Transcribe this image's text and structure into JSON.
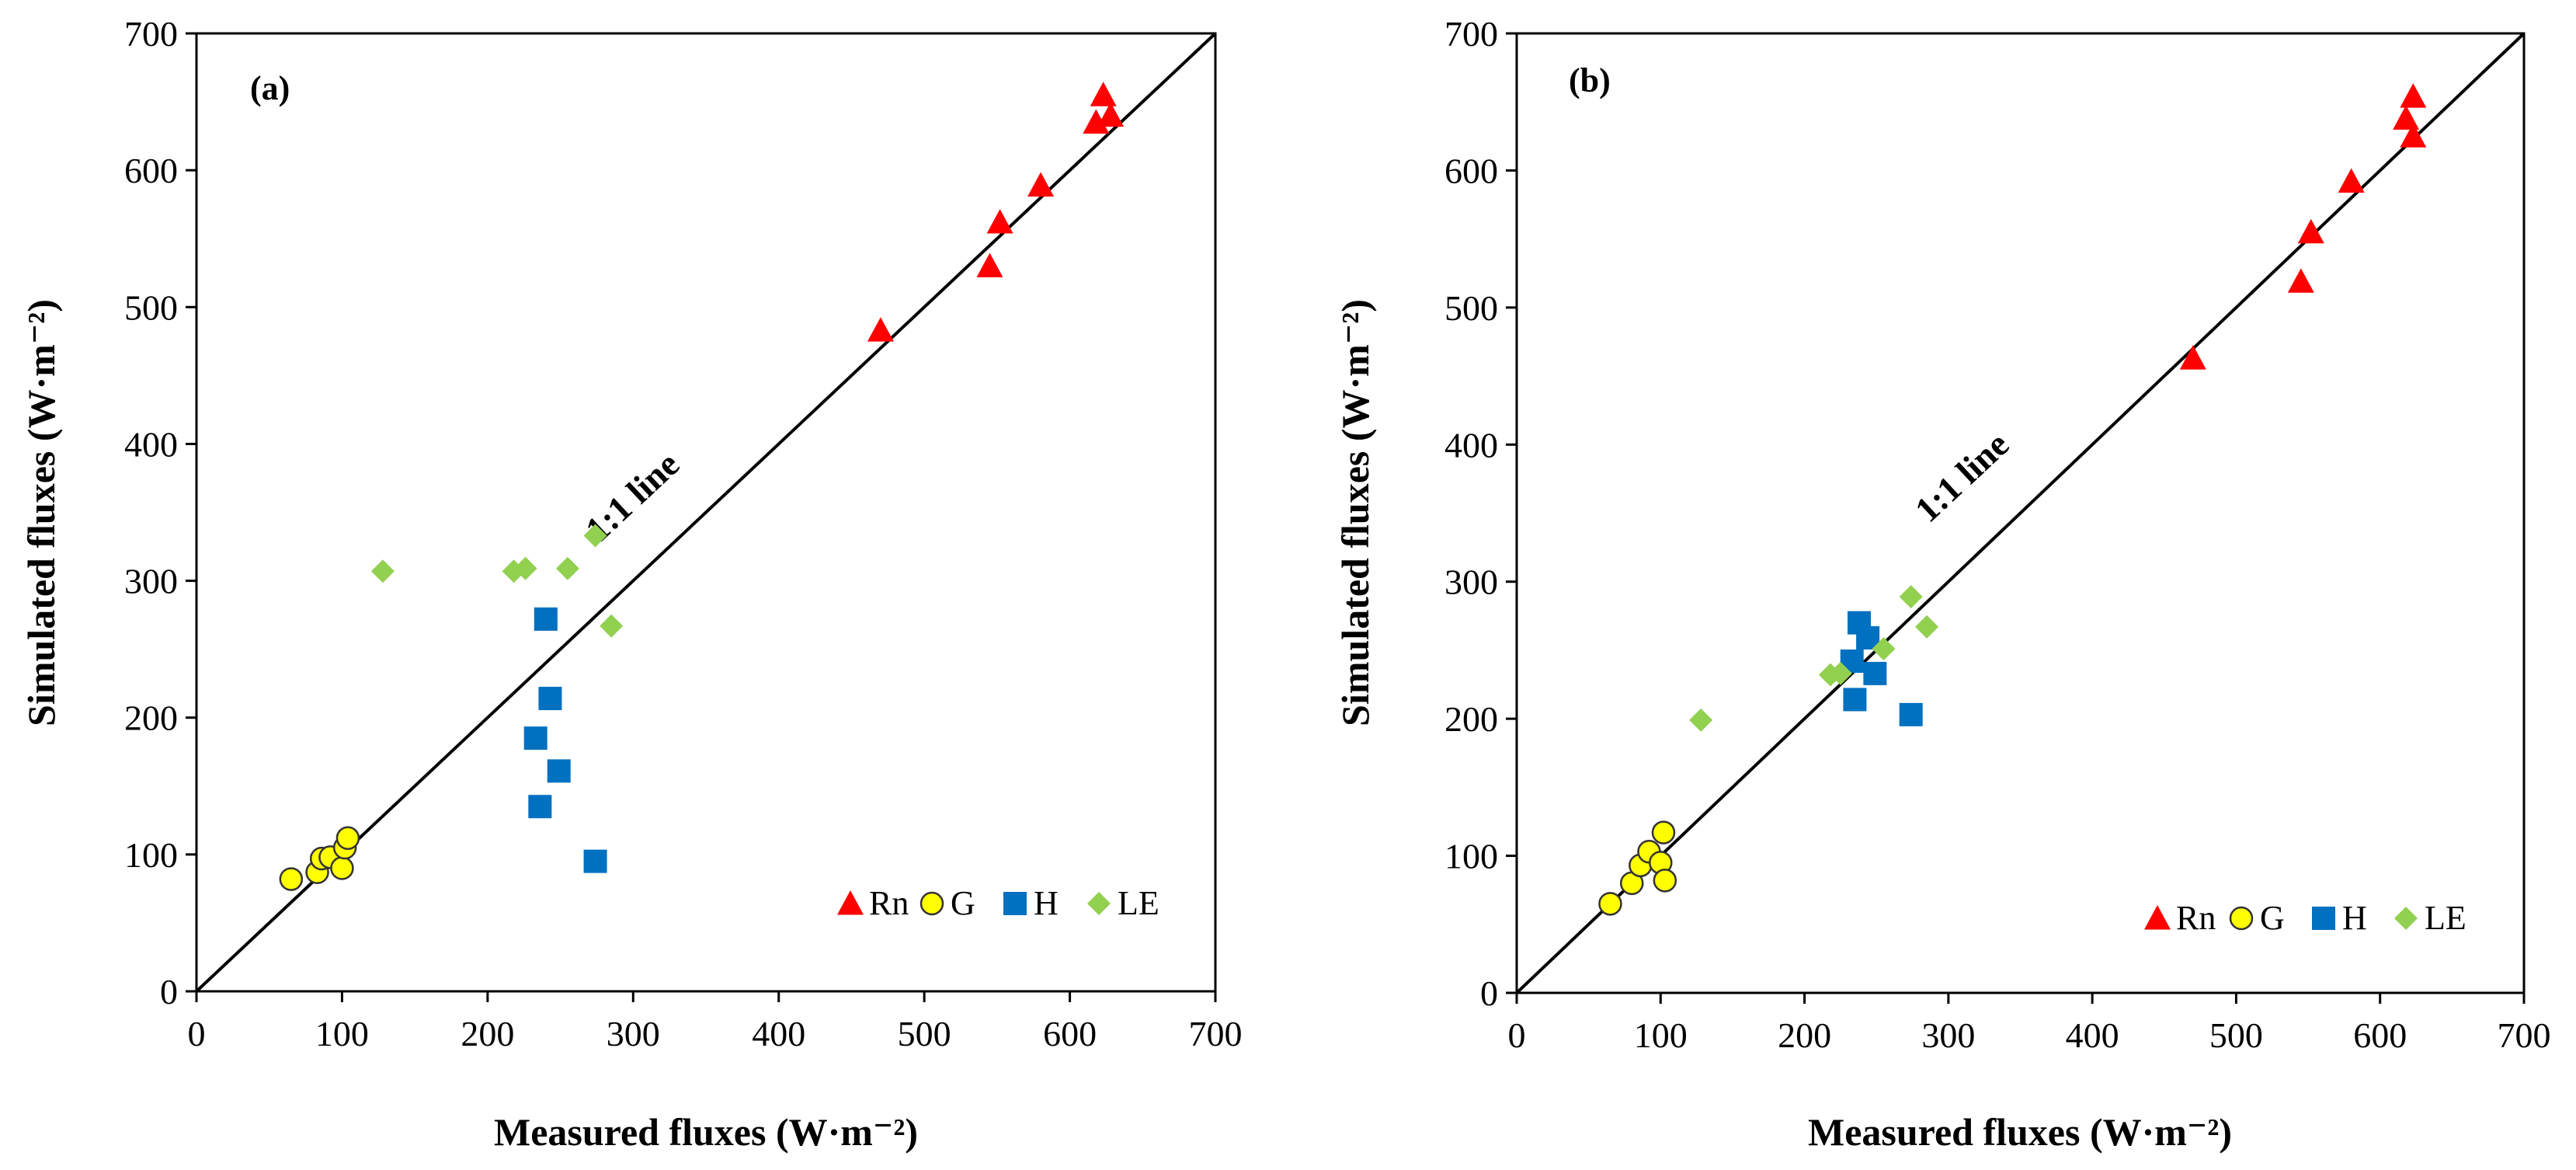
{
  "chart_data": [
    {
      "type": "scatter",
      "panel_label": "(a)",
      "xlabel": "Measured fluxes (W·m⁻²)",
      "ylabel": "Simulated fluxes (W·m⁻²)",
      "xlim": [
        0,
        700
      ],
      "ylim": [
        0,
        700
      ],
      "xticks": [
        "0",
        "100",
        "200",
        "300",
        "400",
        "500",
        "600",
        "700"
      ],
      "yticks": [
        "0",
        "100",
        "200",
        "300",
        "400",
        "500",
        "600",
        "700"
      ],
      "reference_line": {
        "label": "1:1 line",
        "from": [
          0,
          0
        ],
        "to": [
          700,
          700
        ]
      },
      "legend_position": "bottom-right",
      "series": [
        {
          "name": "Rn",
          "marker": "triangle",
          "color": "#ff0000",
          "points": [
            [
              470,
              483
            ],
            [
              545,
              530
            ],
            [
              552,
              562
            ],
            [
              580,
              589
            ],
            [
              618,
              635
            ],
            [
              623,
              655
            ],
            [
              628,
              640
            ]
          ]
        },
        {
          "name": "G",
          "marker": "circle",
          "color": "#ffff00",
          "points": [
            [
              65,
              82
            ],
            [
              83,
              87
            ],
            [
              86,
              97
            ],
            [
              92,
              98
            ],
            [
              100,
              90
            ],
            [
              102,
              105
            ],
            [
              104,
              112
            ]
          ]
        },
        {
          "name": "H",
          "marker": "square",
          "color": "#0070c0",
          "points": [
            [
              236,
              135
            ],
            [
              233,
              185
            ],
            [
              240,
              272
            ],
            [
              243,
              214
            ],
            [
              249,
              161
            ],
            [
              274,
              95
            ]
          ]
        },
        {
          "name": "LE",
          "marker": "diamond",
          "color": "#92d050",
          "points": [
            [
              128,
              307
            ],
            [
              218,
              307
            ],
            [
              226,
              309
            ],
            [
              255,
              309
            ],
            [
              274,
              333
            ],
            [
              285,
              267
            ]
          ]
        }
      ]
    },
    {
      "type": "scatter",
      "panel_label": "(b)",
      "xlabel": "Measured fluxes (W·m⁻²)",
      "ylabel": "Simulated fluxes (W·m⁻²)",
      "xlim": [
        0,
        700
      ],
      "ylim": [
        0,
        700
      ],
      "xticks": [
        "0",
        "100",
        "200",
        "300",
        "400",
        "500",
        "600",
        "700"
      ],
      "yticks": [
        "0",
        "100",
        "200",
        "300",
        "400",
        "500",
        "600",
        "700"
      ],
      "reference_line": {
        "label": "1:1 line",
        "from": [
          0,
          0
        ],
        "to": [
          700,
          700
        ]
      },
      "legend_position": "bottom-right",
      "series": [
        {
          "name": "Rn",
          "marker": "triangle",
          "color": "#ff0000",
          "points": [
            [
              470,
              463
            ],
            [
              545,
              519
            ],
            [
              552,
              555
            ],
            [
              580,
              592
            ],
            [
              618,
              638
            ],
            [
              623,
              654
            ],
            [
              623,
              625
            ]
          ]
        },
        {
          "name": "G",
          "marker": "circle",
          "color": "#ffff00",
          "points": [
            [
              65,
              65
            ],
            [
              80,
              80
            ],
            [
              86,
              93
            ],
            [
              92,
              103
            ],
            [
              100,
              95
            ],
            [
              102,
              117
            ],
            [
              103,
              82
            ]
          ]
        },
        {
          "name": "H",
          "marker": "square",
          "color": "#0070c0",
          "points": [
            [
              235,
              214
            ],
            [
              233,
              242
            ],
            [
              238,
              270
            ],
            [
              244,
              259
            ],
            [
              249,
              233
            ],
            [
              274,
              203
            ]
          ]
        },
        {
          "name": "LE",
          "marker": "diamond",
          "color": "#92d050",
          "points": [
            [
              128,
              199
            ],
            [
              218,
              232
            ],
            [
              225,
              233
            ],
            [
              255,
              251
            ],
            [
              274,
              289
            ],
            [
              285,
              267
            ]
          ]
        }
      ]
    }
  ]
}
